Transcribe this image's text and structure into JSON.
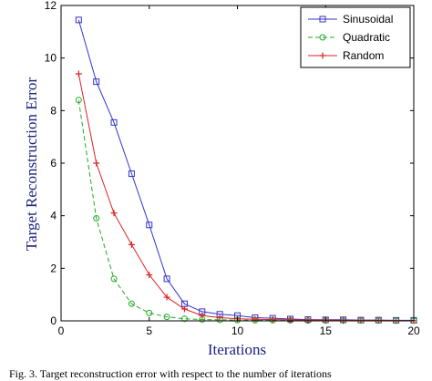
{
  "chart_data": {
    "type": "line",
    "xlabel": "Iterations",
    "ylabel": "Target Reconstruction Error",
    "xlim": [
      0,
      20
    ],
    "ylim": [
      0,
      12
    ],
    "xticks": [
      0,
      5,
      10,
      15,
      20
    ],
    "yticks": [
      0,
      2,
      4,
      6,
      8,
      10,
      12
    ],
    "grid": false,
    "legend_position": "top-right",
    "x": [
      1,
      2,
      3,
      4,
      5,
      6,
      7,
      8,
      9,
      10,
      11,
      12,
      13,
      14,
      15,
      16,
      17,
      18,
      19,
      20
    ],
    "series": [
      {
        "name": "Sinusoidal",
        "color": "#3333cc",
        "marker": "square",
        "line_style": "solid",
        "values": [
          11.45,
          9.1,
          7.55,
          5.6,
          3.65,
          1.6,
          0.65,
          0.35,
          0.25,
          0.2,
          0.12,
          0.1,
          0.07,
          0.05,
          0.04,
          0.04,
          0.03,
          0.03,
          0.02,
          0.02
        ]
      },
      {
        "name": "Quadratic",
        "color": "#22aa22",
        "marker": "circle",
        "line_style": "dashed",
        "values": [
          8.4,
          3.9,
          1.6,
          0.65,
          0.3,
          0.15,
          0.08,
          0.05,
          0.04,
          0.03,
          0.02,
          0.02,
          0.02,
          0.01,
          0.01,
          0.01,
          0.01,
          0.01,
          0.01,
          0.01
        ]
      },
      {
        "name": "Random",
        "color": "#dd2222",
        "marker": "plus",
        "line_style": "solid",
        "values": [
          9.4,
          6.0,
          4.1,
          2.9,
          1.75,
          0.9,
          0.45,
          0.2,
          0.12,
          0.08,
          0.06,
          0.05,
          0.04,
          0.03,
          0.03,
          0.02,
          0.02,
          0.02,
          0.01,
          0.01
        ]
      }
    ]
  },
  "caption": {
    "text": "Fig. 3. Target reconstruction error with respect to the number of iterations"
  }
}
